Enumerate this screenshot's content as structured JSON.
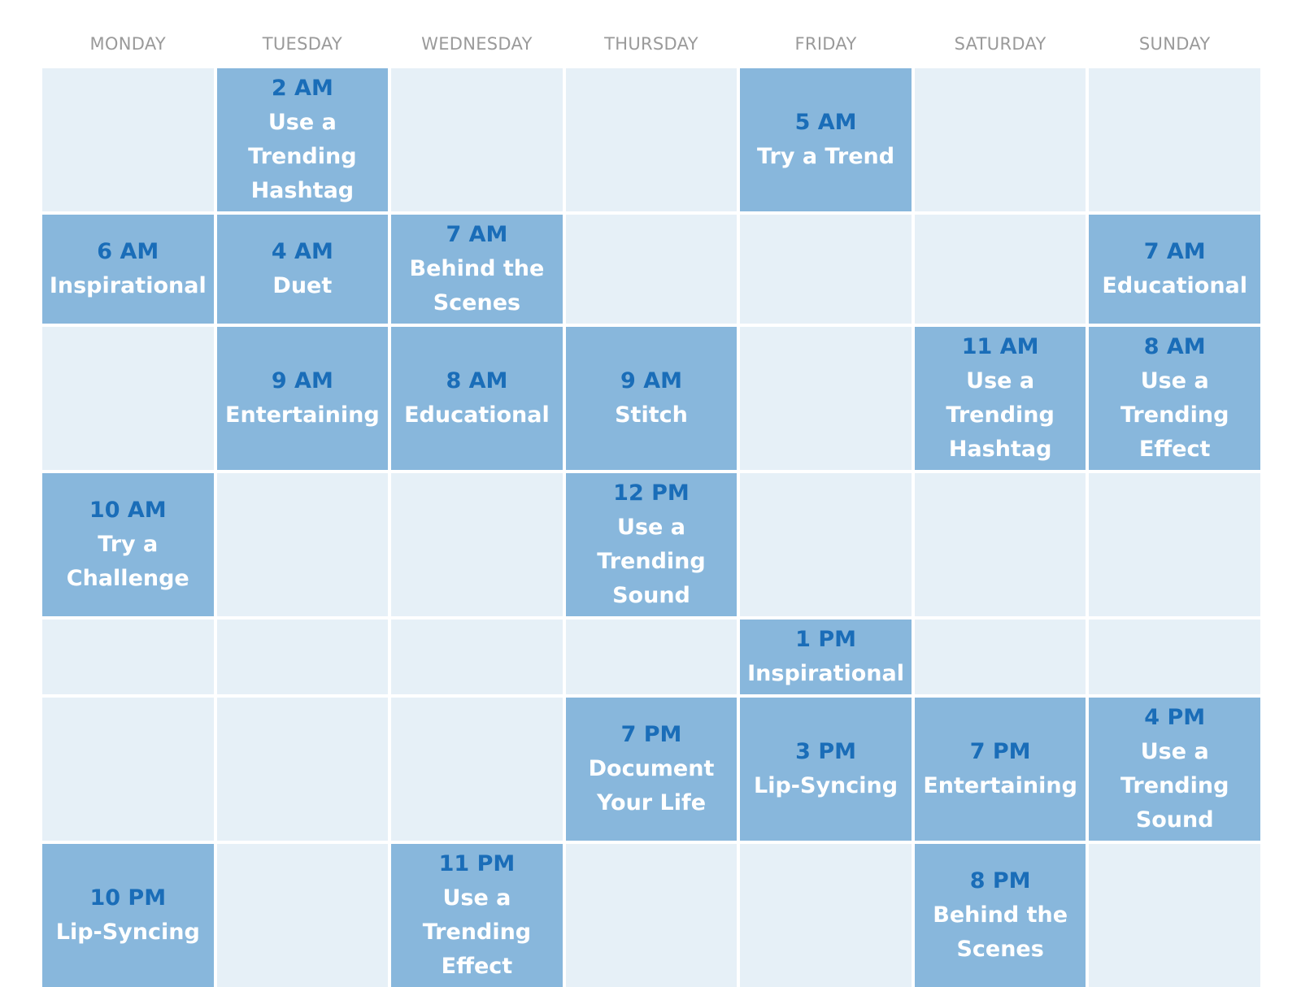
{
  "days": [
    "MONDAY",
    "TUESDAY",
    "WEDNESDAY",
    "THURSDAY",
    "FRIDAY",
    "SATURDAY",
    "SUNDAY"
  ],
  "rows": [
    [
      null,
      {
        "time": "2 AM",
        "label": "Use a Trending Hashtag"
      },
      null,
      null,
      {
        "time": "5 AM",
        "label": "Try a Trend"
      },
      null,
      null
    ],
    [
      {
        "time": "6 AM",
        "label": "Inspirational"
      },
      {
        "time": "4 AM",
        "label": "Duet"
      },
      {
        "time": "7 AM",
        "label": "Behind the Scenes"
      },
      null,
      null,
      null,
      {
        "time": "7 AM",
        "label": "Educational"
      }
    ],
    [
      null,
      {
        "time": "9 AM",
        "label": "Entertaining"
      },
      {
        "time": "8 AM",
        "label": "Educational"
      },
      {
        "time": "9 AM",
        "label": "Stitch"
      },
      null,
      {
        "time": "11 AM",
        "label": "Use a Trending Hashtag"
      },
      {
        "time": "8 AM",
        "label": "Use a Trending Effect"
      }
    ],
    [
      {
        "time": "10 AM",
        "label": "Try a Challenge"
      },
      null,
      null,
      {
        "time": "12 PM",
        "label": "Use a Trending Sound"
      },
      null,
      null,
      null
    ],
    [
      null,
      null,
      null,
      null,
      {
        "time": "1 PM",
        "label": "Inspirational"
      },
      null,
      null
    ],
    [
      null,
      null,
      null,
      {
        "time": "7 PM",
        "label": "Document Your Life"
      },
      {
        "time": "3 PM",
        "label": "Lip-Syncing"
      },
      {
        "time": "7 PM",
        "label": "Entertaining"
      },
      {
        "time": "4 PM",
        "label": "Use a Trending Sound"
      }
    ],
    [
      {
        "time": "10 PM",
        "label": "Lip-Syncing"
      },
      null,
      {
        "time": "11 PM",
        "label": "Use a Trending Effect"
      },
      null,
      null,
      {
        "time": "8 PM",
        "label": "Behind the Scenes"
      },
      null
    ]
  ]
}
